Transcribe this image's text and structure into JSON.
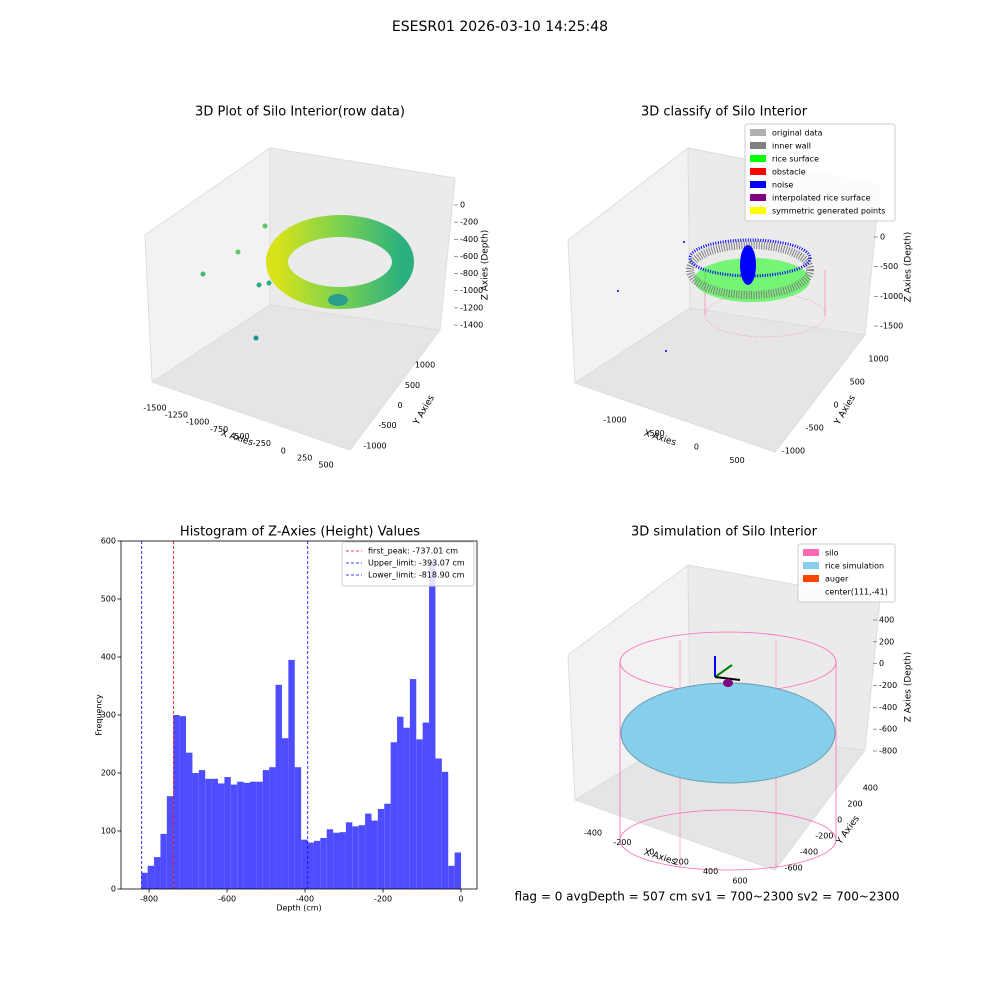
{
  "figure": {
    "title": "ESESR01 2026-03-10 14:25:48",
    "footer": "flag = 0     avgDepth = 507 cm  sv1 = 700~2300  sv2 = 700~2300"
  },
  "chart_data": [
    {
      "type": "scatter3d",
      "title": "3D Plot of Silo Interior(row data)",
      "xlabel": "X Axies",
      "ylabel": "Y Axies",
      "zlabel": "Z Axies (Depth)",
      "xlim": [
        -1600,
        600
      ],
      "xticks": [
        -1500,
        -1250,
        -1000,
        -750,
        -500,
        -250,
        0,
        250,
        500
      ],
      "ylim": [
        -1200,
        1200
      ],
      "yticks": [
        -1000,
        -500,
        0,
        500,
        1000
      ],
      "zlim": [
        -1500,
        50
      ],
      "zticks": [
        -1400,
        -1200,
        -1000,
        -800,
        -600,
        -400,
        -200,
        0
      ]
    },
    {
      "type": "scatter3d",
      "title": "3D classify of Silo Interior",
      "xlabel": "X Axies",
      "ylabel": "Y Axies",
      "zlabel": "Z Axies (Depth)",
      "xlim": [
        -1400,
        700
      ],
      "xticks": [
        -1000,
        -500,
        0,
        500
      ],
      "ylim": [
        -1200,
        1200
      ],
      "yticks": [
        -1000,
        -500,
        0,
        500,
        1000
      ],
      "zlim": [
        -1700,
        100
      ],
      "zticks": [
        -1500,
        -1000,
        -500,
        0
      ],
      "legend": [
        {
          "name": "original data",
          "color": "#b0b0b0"
        },
        {
          "name": "inner wall",
          "color": "#808080"
        },
        {
          "name": "rice surface",
          "color": "#00ff00"
        },
        {
          "name": "obstacle",
          "color": "#ff0000"
        },
        {
          "name": "noise",
          "color": "#0000ff"
        },
        {
          "name": "interpolated rice surface",
          "color": "#800080"
        },
        {
          "name": "symmetric generated points",
          "color": "#ffff00"
        }
      ]
    },
    {
      "type": "histogram",
      "title": "Histogram of Z-Axies (Height) Values",
      "xlabel": "Depth (cm)",
      "ylabel": "Frequency",
      "color": "#4d4dff",
      "bins": [
        -820,
        -803.6,
        -787.2,
        -770.8,
        -754.4,
        -738,
        -721.6,
        -705.2,
        -688.8,
        -672.4,
        -656,
        -639.6,
        -623.2,
        -606.8,
        -590.4,
        -574,
        -557.6,
        -541.2,
        -524.8,
        -508.4,
        -492,
        -475.6,
        -459.2,
        -442.8,
        -426.4,
        -410,
        -393.6,
        -377.2,
        -360.8,
        -344.4,
        -328,
        -311.6,
        -295.2,
        -278.8,
        -262.4,
        -246,
        -229.6,
        -213.2,
        -196.8,
        -180.4,
        -164,
        -147.6,
        -131.2,
        -114.8,
        -98.4,
        -82,
        -65.6,
        -49.2,
        -32.8,
        -16.4,
        0
      ],
      "values": [
        28,
        40,
        55,
        95,
        160,
        300,
        298,
        235,
        200,
        205,
        190,
        190,
        182,
        193,
        180,
        185,
        183,
        185,
        185,
        205,
        210,
        352,
        260,
        395,
        210,
        85,
        80,
        83,
        88,
        103,
        97,
        98,
        115,
        108,
        110,
        130,
        118,
        138,
        147,
        253,
        297,
        278,
        362,
        258,
        287,
        565,
        225,
        202,
        40,
        63
      ],
      "xlim": [
        -872,
        41
      ],
      "xticks": [
        -800,
        -600,
        -400,
        -200,
        0
      ],
      "ylim": [
        0,
        600
      ],
      "yticks": [
        0,
        100,
        200,
        300,
        400,
        500,
        600
      ],
      "lines": [
        {
          "value": -737.01,
          "label": "first_peak: -737.01 cm",
          "color": "#ff0000"
        },
        {
          "value": -393.07,
          "label": "Upper_limit: -393.07 cm",
          "color": "#0000ff"
        },
        {
          "value": -818.9,
          "label": "Lower_limit: -818.90 cm",
          "color": "#0000ff"
        }
      ]
    },
    {
      "type": "surface3d",
      "title": "3D simulation of Silo Interior",
      "xlabel": "X Axies",
      "ylabel": "Y Axies",
      "zlabel": "Z Axies (Depth)",
      "xlim": [
        -500,
        700
      ],
      "xticks": [
        -400,
        -200,
        0,
        200,
        400,
        600
      ],
      "ylim": [
        -700,
        500
      ],
      "yticks": [
        -600,
        -400,
        -200,
        0,
        200,
        400
      ],
      "zlim": [
        -900,
        500
      ],
      "zticks": [
        -800,
        -600,
        -400,
        -200,
        0,
        200,
        400
      ],
      "legend": [
        {
          "name": "silo",
          "color": "#ff69b4"
        },
        {
          "name": "rice simulation",
          "color": "#87ceeb"
        },
        {
          "name": "auger",
          "color": "#ff4500"
        },
        {
          "name": "center(111,-41)"
        }
      ]
    }
  ]
}
